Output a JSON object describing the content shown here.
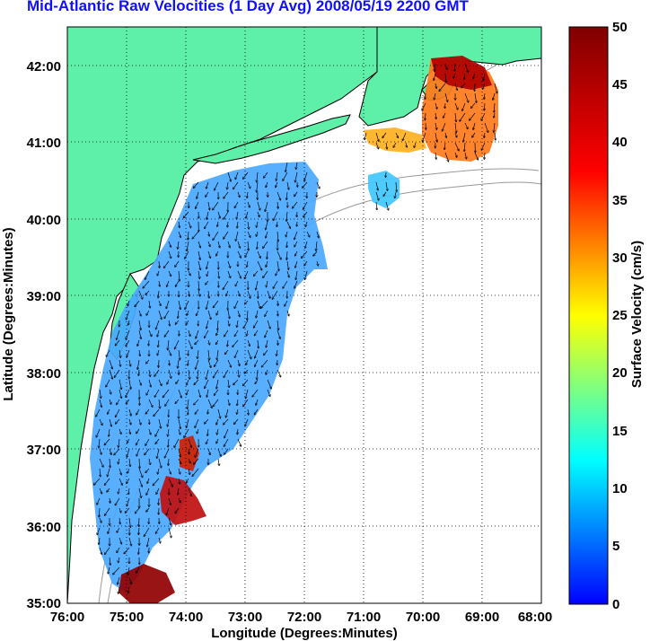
{
  "title": "Mid-Atlantic Raw Velocities (1 Day Avg) 2008/05/19 2200 GMT",
  "x_axis": {
    "label": "Longitude (Degrees:Minutes)",
    "ticks": [
      "76:00",
      "75:00",
      "74:00",
      "73:00",
      "72:00",
      "71:00",
      "70:00",
      "69:00",
      "68:00"
    ]
  },
  "y_axis": {
    "label": "Latitude (Degrees:Minutes)",
    "ticks": [
      "42:00",
      "41:00",
      "40:00",
      "39:00",
      "38:00",
      "37:00",
      "36:00",
      "35:00"
    ]
  },
  "colorbar": {
    "label": "Surface Velocity (cm/s)",
    "min": 0,
    "max": 50,
    "ticks": [
      "50",
      "45",
      "40",
      "35",
      "30",
      "25",
      "20",
      "15",
      "10",
      "5",
      "0"
    ],
    "colormap": "jet"
  },
  "map": {
    "lon_range": [
      -76,
      -68
    ],
    "lat_range": [
      35,
      42.5
    ],
    "land_color": "#5ef0a8",
    "coast_color": "#000000",
    "bathymetry_color": "#999999",
    "grid": "dotted"
  }
}
